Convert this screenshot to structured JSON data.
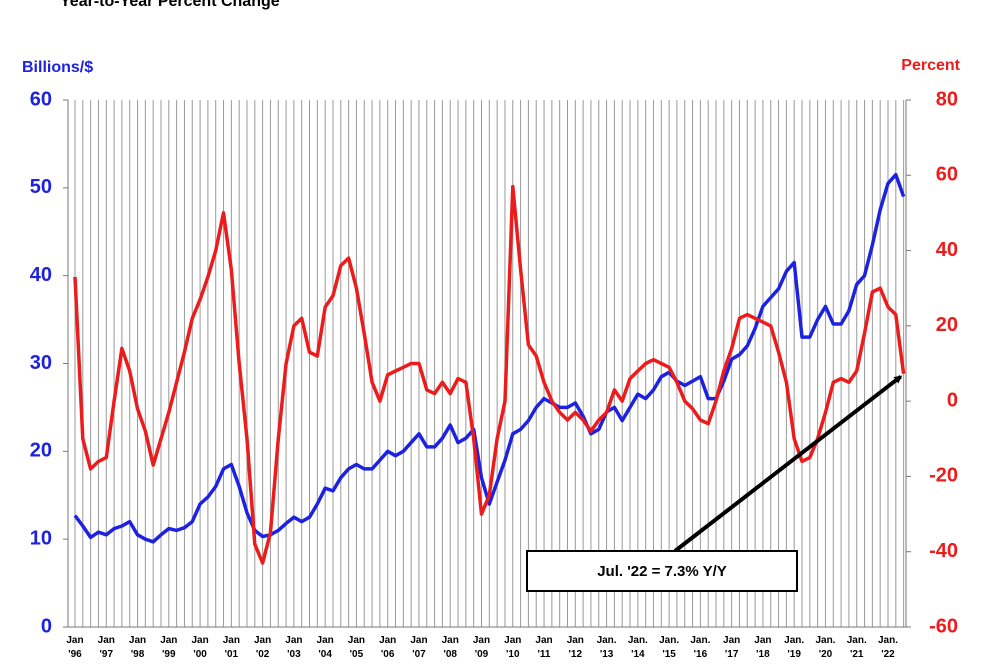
{
  "chart_data": {
    "type": "line",
    "title": "Year-to-Year Percent Change",
    "y_label": "Billions/$",
    "y2_label": "Percent",
    "annotation": "Jul. '22 = 7.3% Y/Y",
    "categories": [
      "Jan '96",
      null,
      null,
      null,
      "Jan '97",
      null,
      null,
      null,
      "Jan '98",
      null,
      null,
      null,
      "Jan '99",
      null,
      null,
      null,
      "Jan '00",
      null,
      null,
      null,
      "Jan '01",
      null,
      null,
      null,
      "Jan '02",
      null,
      null,
      null,
      "Jan '03",
      null,
      null,
      null,
      "Jan '04",
      null,
      null,
      null,
      "Jan '05",
      null,
      null,
      null,
      "Jan '06",
      null,
      null,
      null,
      "Jan '07",
      null,
      null,
      null,
      "Jan '08",
      null,
      null,
      null,
      "Jan '09",
      null,
      null,
      null,
      "Jan '10",
      null,
      null,
      null,
      "Jan '11",
      null,
      null,
      null,
      "Jan '12",
      null,
      null,
      null,
      "Jan. '13",
      null,
      null,
      null,
      "Jan. '14",
      null,
      null,
      null,
      "Jan. '15",
      null,
      null,
      null,
      "Jan. '16",
      null,
      null,
      null,
      "Jan '17",
      null,
      null,
      null,
      "Jan '18",
      null,
      null,
      null,
      "Jan. '19",
      null,
      null,
      null,
      "Jan. '20",
      null,
      null,
      null,
      "Jan. '21",
      null,
      null,
      null,
      "Jan. '22",
      null,
      null
    ],
    "series": [
      {
        "color": "#1c22e0",
        "values": [
          12.7,
          11.5,
          10.2,
          10.8,
          10.5,
          11.2,
          11.5,
          12.0,
          10.5,
          10.0,
          9.7,
          10.5,
          11.2,
          11.0,
          11.3,
          12.0,
          14.0,
          14.8,
          16.0,
          18.0,
          18.5,
          16.0,
          13.0,
          11.0,
          10.3,
          10.5,
          11.0,
          11.8,
          12.5,
          12.0,
          12.5,
          14.0,
          15.8,
          15.5,
          17.0,
          18.0,
          18.5,
          18.0,
          18.0,
          19.0,
          20.0,
          19.5,
          20.0,
          21.0,
          22.0,
          20.5,
          20.5,
          21.5,
          23.0,
          21.0,
          21.5,
          22.5,
          17.0,
          14.0,
          16.5,
          19.0,
          22.0,
          22.5,
          23.5,
          25.0,
          26.0,
          25.5,
          25.0,
          25.0,
          25.5,
          24.0,
          22.0,
          22.5,
          24.5,
          25.0,
          23.5,
          25.0,
          26.5,
          26.0,
          27.0,
          28.5,
          29.0,
          28.0,
          27.5,
          28.0,
          28.5,
          26.0,
          26.0,
          28.0,
          30.5,
          31.0,
          32.0,
          34.0,
          36.5,
          37.5,
          38.5,
          40.5,
          41.5,
          33.0,
          33.0,
          35.0,
          36.5,
          34.5,
          34.5,
          36.0,
          39.0,
          40.0,
          43.5,
          47.5,
          50.5,
          51.5,
          49.0
        ]
      },
      {
        "color": "#ec1c1c",
        "axis": "y2",
        "values": [
          33,
          -10,
          -18,
          -16,
          -15,
          0,
          14,
          8,
          -2,
          -8,
          -17,
          -10,
          -3,
          5,
          13,
          22,
          27,
          33,
          40,
          50,
          35,
          10,
          -10,
          -38,
          -43,
          -35,
          -10,
          10,
          20,
          22,
          13,
          12,
          25,
          28,
          36,
          38,
          30,
          18,
          5,
          0,
          7,
          8,
          9,
          10,
          10,
          3,
          2,
          5,
          2,
          6,
          5,
          -10,
          -30,
          -25,
          -10,
          0,
          57,
          35,
          15,
          12,
          5,
          0,
          -3,
          -5,
          -3,
          -5,
          -8,
          -5,
          -3,
          3,
          0,
          6,
          8,
          10,
          11,
          10,
          9,
          5,
          0,
          -2,
          -5,
          -6,
          0,
          8,
          14,
          22,
          23,
          22,
          21,
          20,
          13,
          5,
          -10,
          -16,
          -15,
          -10,
          -3,
          5,
          6,
          5,
          8,
          18,
          29,
          30,
          25,
          23,
          7.3
        ]
      }
    ],
    "ylim": [
      0,
      60
    ],
    "yticks": [
      0,
      10,
      20,
      30,
      40,
      50,
      60
    ],
    "y2lim": [
      -60,
      80
    ],
    "y2ticks": [
      -60,
      -40,
      -20,
      0,
      20,
      40,
      60,
      80
    ],
    "grid": true
  }
}
